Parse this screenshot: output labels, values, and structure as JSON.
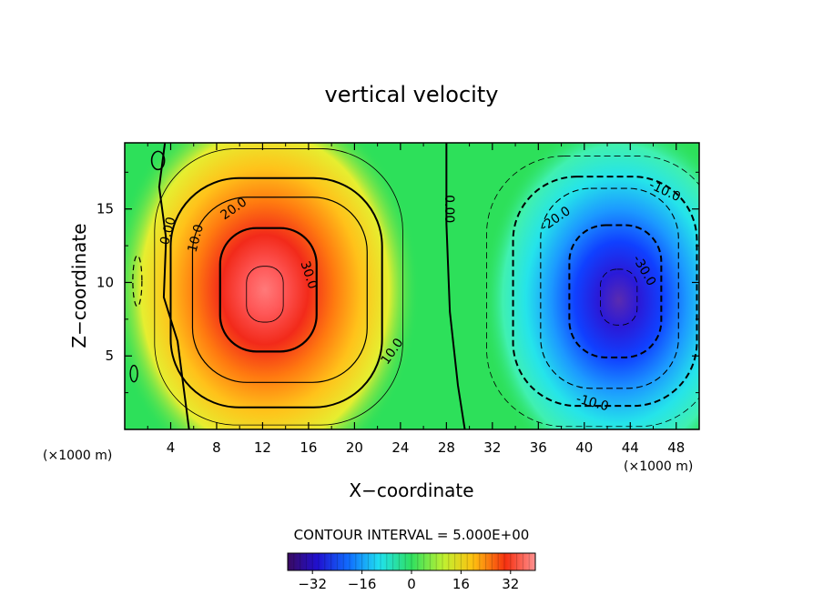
{
  "chart_data": {
    "type": "heatmap",
    "subtype": "filled-contour",
    "title": "vertical velocity",
    "xlabel": "X−coordinate",
    "ylabel": "Z−coordinate",
    "x_unit_left": "(×1000 m)",
    "x_unit_right": "(×1000 m)",
    "xlim": [
      0,
      50
    ],
    "ylim": [
      0,
      19.5
    ],
    "xticks": [
      4,
      8,
      12,
      16,
      20,
      24,
      28,
      32,
      36,
      40,
      44,
      48
    ],
    "xtick_labels": [
      "4",
      "8",
      "12",
      "16",
      "20",
      "24",
      "28",
      "32",
      "36",
      "40",
      "44",
      "48"
    ],
    "yticks": [
      5,
      10,
      15
    ],
    "ytick_labels": [
      "5",
      "10",
      "15"
    ],
    "contour_interval_text": "CONTOUR INTERVAL = 5.000E+00",
    "contour_labels": [
      {
        "text": "0.00",
        "x": 3.8,
        "z": 13.5,
        "angle": -75
      },
      {
        "text": "10.0",
        "x": 6.2,
        "z": 13.0,
        "angle": -75
      },
      {
        "text": "20.0",
        "x": 9.5,
        "z": 15.0,
        "angle": -35
      },
      {
        "text": "30.0",
        "x": 16.0,
        "z": 10.5,
        "angle": 72
      },
      {
        "text": "10.0",
        "x": 23.3,
        "z": 5.3,
        "angle": -55
      },
      {
        "text": "0.00",
        "x": 28.2,
        "z": 15.0,
        "angle": 90
      },
      {
        "text": "-20.0",
        "x": 37.5,
        "z": 14.3,
        "angle": -35
      },
      {
        "text": "-10.0",
        "x": 47.0,
        "z": 16.2,
        "angle": 25
      },
      {
        "text": "-30.0",
        "x": 45.2,
        "z": 10.8,
        "angle": 60
      },
      {
        "text": "-10.0",
        "x": 40.7,
        "z": 1.8,
        "angle": 15
      }
    ],
    "features": [
      {
        "name": "updraft",
        "x_center": 12.2,
        "z_center": 9.5,
        "peak": 33
      },
      {
        "name": "downdraft",
        "x_center": 43.0,
        "z_center": 8.8,
        "peak": -35
      }
    ],
    "colorbar": {
      "min": -40,
      "max": 40,
      "ticks": [
        -32,
        -16,
        0,
        16,
        32
      ],
      "tick_labels": [
        "−32",
        "−16",
        "0",
        "16",
        "32"
      ]
    },
    "colors": {
      "background": "#2de05a",
      "warm_peak": "#ff6a6a",
      "cold_peak": "#5a2bb0"
    }
  }
}
